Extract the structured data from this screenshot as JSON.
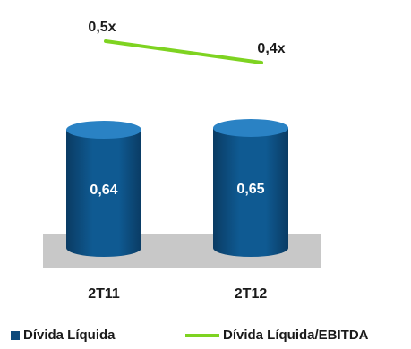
{
  "chart_data": {
    "type": "bar",
    "categories": [
      "2T11",
      "2T12"
    ],
    "series": [
      {
        "name": "Dívida Líquida",
        "kind": "bar",
        "values": [
          0.64,
          0.65
        ],
        "labels": [
          "0,64",
          "0,65"
        ],
        "color": "#0e4a7b"
      },
      {
        "name": "Dívida Líquida/EBITDA",
        "kind": "line",
        "values": [
          0.5,
          0.4
        ],
        "labels": [
          "0,5x",
          "0,4x"
        ],
        "color": "#7ed321"
      }
    ],
    "title": "",
    "xlabel": "",
    "ylabel": "",
    "grid": false,
    "legend": "bottom"
  },
  "legend": {
    "bar_label": "Dívida Líquida",
    "line_label": "Dívida Líquida/EBITDA"
  },
  "colors": {
    "bar_dark": "#0a3b63",
    "bar_mid": "#0f5a92",
    "bar_light": "#2a82c4",
    "floor": "#c8c8c8",
    "line": "#7ed321"
  }
}
